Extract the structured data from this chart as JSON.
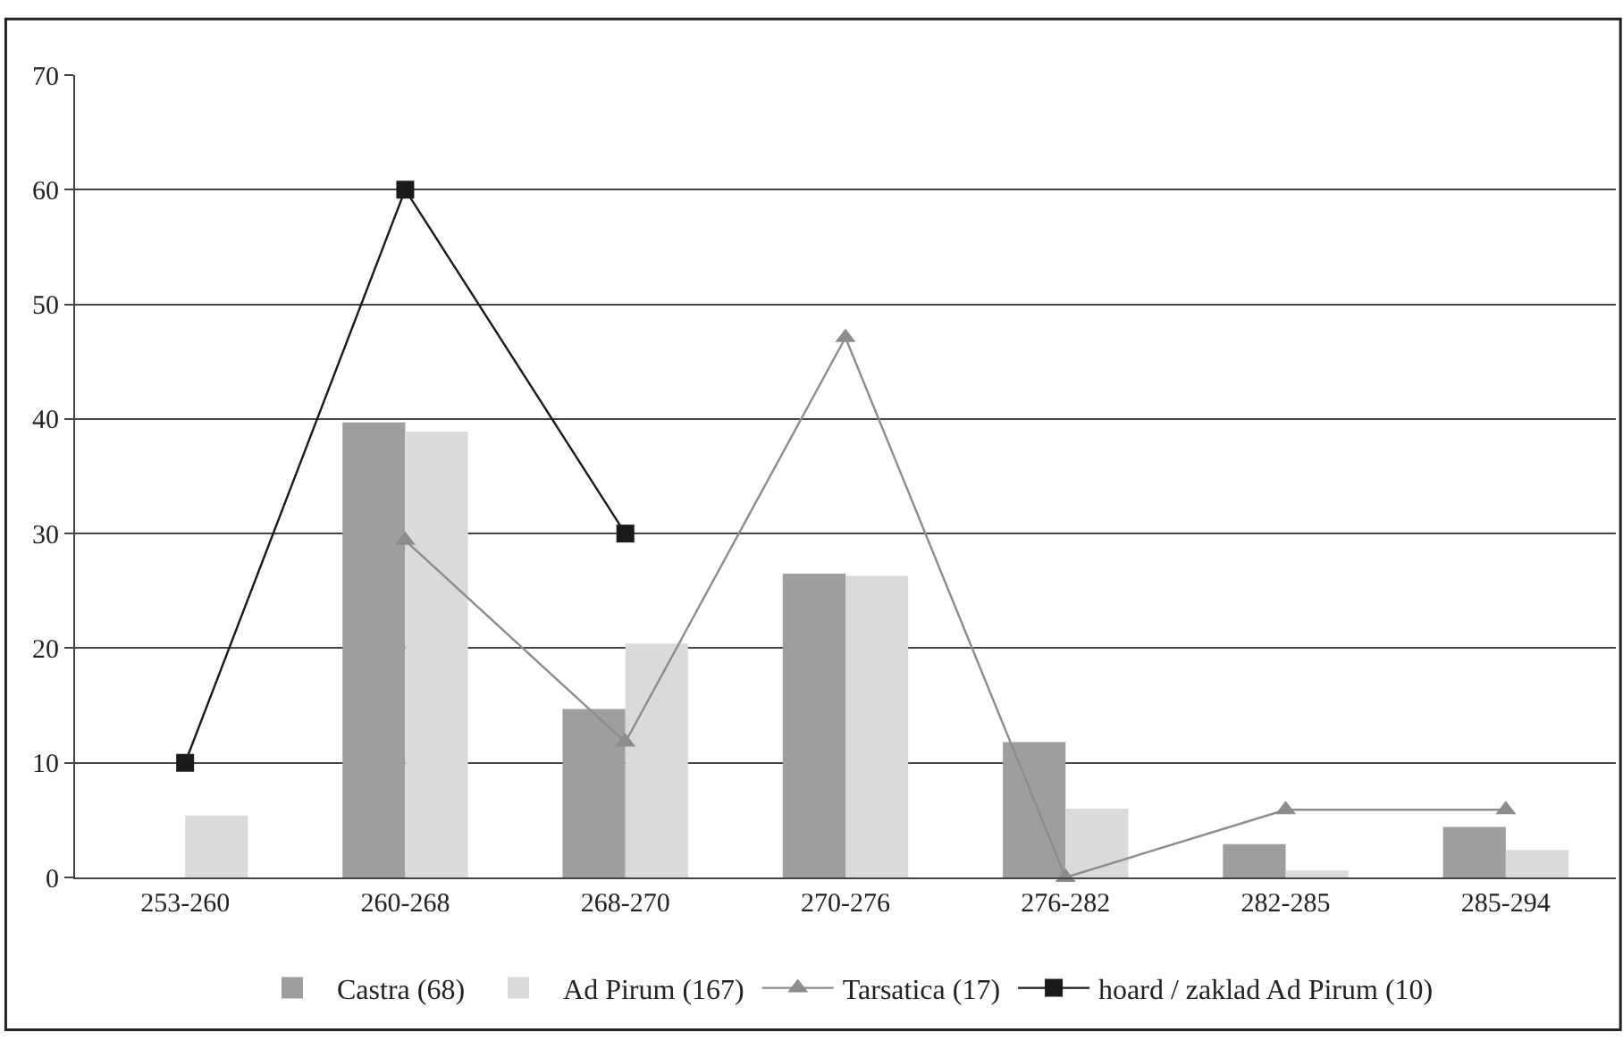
{
  "chart_data": {
    "type": "bar",
    "categories": [
      "253-260",
      "260-268",
      "268-270",
      "270-276",
      "276-282",
      "282-285",
      "285-294"
    ],
    "series": [
      {
        "name": "Castra (68)",
        "color": "#9d9ea0",
        "values": [
          0,
          39.7,
          14.7,
          26.5,
          11.8,
          2.9,
          4.4
        ]
      },
      {
        "name": "Ad Pirum (167)",
        "color": "#d9dadb",
        "values": [
          5.4,
          38.9,
          20.4,
          26.3,
          6.0,
          0.6,
          2.4
        ]
      },
      {
        "name": "Tarsatica (17)",
        "type": "line",
        "color": "#8c8c8c",
        "marker": "triangle",
        "values": [
          null,
          29.4,
          11.8,
          47.1,
          0,
          5.9,
          5.9
        ]
      },
      {
        "name": "hoard / zaklad Ad Pirum (10)",
        "type": "line",
        "color": "#1a1a1a",
        "marker": "square",
        "values": [
          10,
          60,
          30,
          null,
          null,
          null,
          null
        ]
      }
    ],
    "ylim": [
      0,
      70
    ],
    "yticks": [
      0,
      10,
      20,
      30,
      40,
      50,
      60,
      70
    ],
    "grid": "y",
    "legend": "bottom"
  }
}
